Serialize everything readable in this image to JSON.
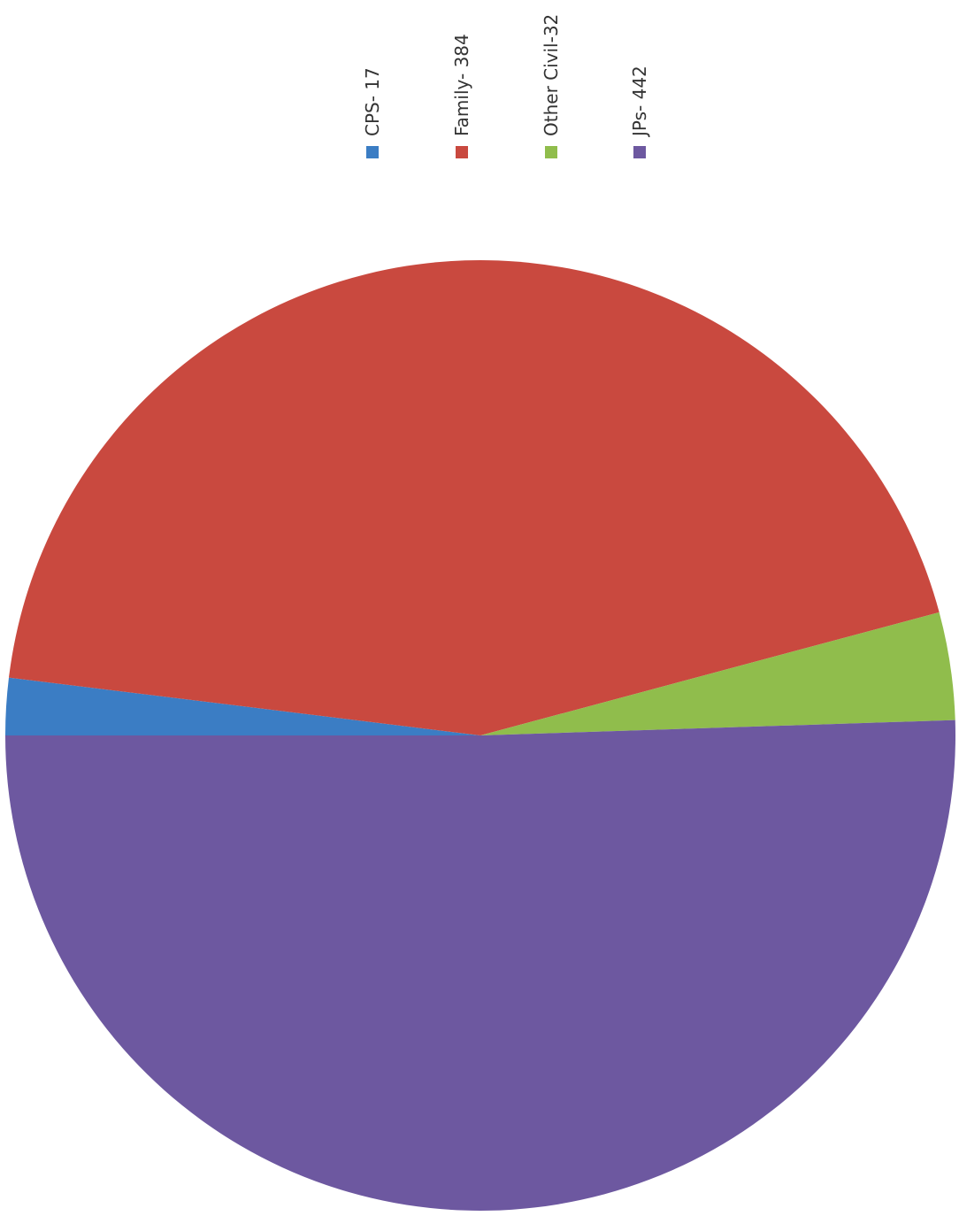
{
  "chart_data": {
    "type": "pie",
    "title": "",
    "orientation": "rotated-90-clockwise",
    "legend_position": "top",
    "slices": [
      {
        "label": "CPS- 17",
        "value": 17,
        "color": "#3b7dc4"
      },
      {
        "label": "Family- 384",
        "value": 384,
        "color": "#c9493f"
      },
      {
        "label": "Other Civil-32",
        "value": 32,
        "color": "#90bd4c"
      },
      {
        "label": "JPs- 442",
        "value": 442,
        "color": "#6d58a0"
      }
    ]
  }
}
